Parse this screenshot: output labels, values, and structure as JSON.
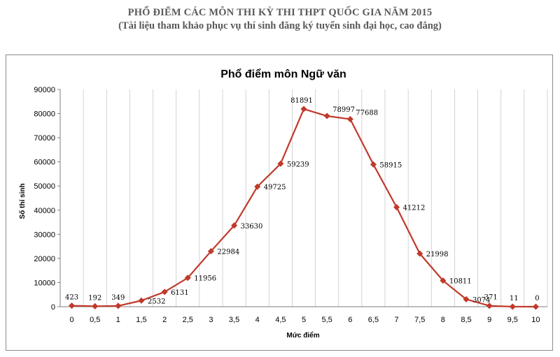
{
  "header": {
    "title": "PHỔ ĐIỂM CÁC MÔN THI KỲ THI THPT QUỐC GIA NĂM 2015",
    "subtitle": "(Tài liệu tham khảo phục vụ thí sinh đăng ký tuyển sinh đại học, cao đẳng)"
  },
  "chart_data": {
    "type": "line",
    "title": "Phổ điểm môn Ngữ văn",
    "xlabel": "Mức điểm",
    "ylabel": "Số thí sinh",
    "categories": [
      "0",
      "0,5",
      "1",
      "1,5",
      "2",
      "2,5",
      "3",
      "3,5",
      "4",
      "4,5",
      "5",
      "5,5",
      "6",
      "6,5",
      "7",
      "7,5",
      "8",
      "8,5",
      "9",
      "9,5",
      "10"
    ],
    "series": [
      {
        "values": [
          423,
          192,
          349,
          2532,
          6131,
          11956,
          22984,
          33630,
          49725,
          59239,
          81891,
          78997,
          77688,
          58915,
          41212,
          21998,
          10811,
          3074,
          371,
          11,
          0
        ]
      }
    ],
    "ylim": [
      0,
      90000
    ],
    "yticks": [
      "0",
      "10000",
      "20000",
      "30000",
      "40000",
      "50000",
      "60000",
      "70000",
      "80000",
      "90000"
    ],
    "grid": "vertical",
    "line_color": "#C0392B"
  }
}
